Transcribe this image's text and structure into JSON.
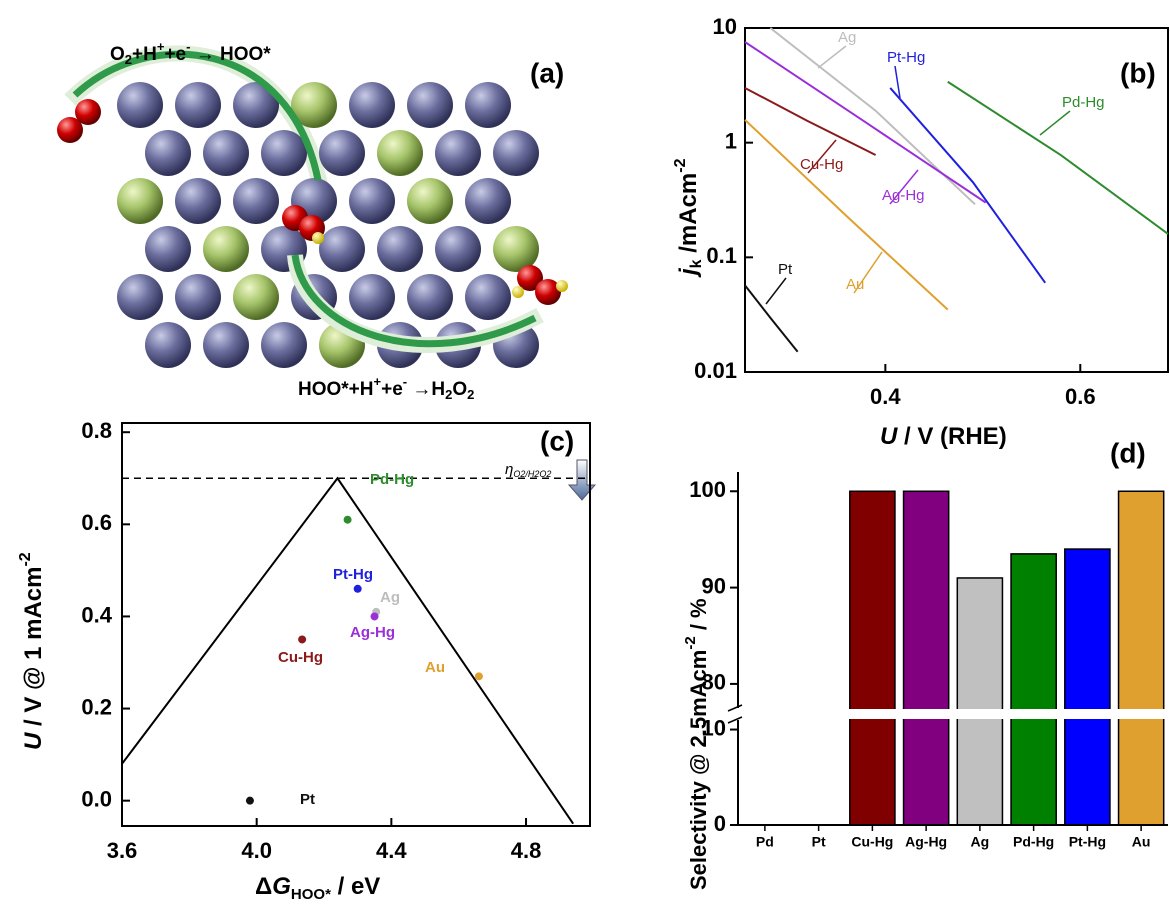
{
  "illustration": {
    "panel_label": "(a)",
    "reaction_1": [
      "O",
      "2",
      "+H",
      "+",
      "+e",
      "-",
      " → HOO*"
    ],
    "reaction_2": [
      "HOO*+H",
      "+",
      "+e",
      "-",
      " →H",
      "2",
      "O",
      "2"
    ]
  },
  "chart_data": [
    {
      "type": "line",
      "panel_label": "(b)",
      "log_y": true,
      "xlabel": [
        "U",
        " / V (RHE)"
      ],
      "ylabel": [
        "j",
        "k",
        " /mAcm",
        "-2"
      ],
      "xlim": [
        0.256,
        0.69
      ],
      "ylim": [
        0.01,
        10
      ],
      "xticks": [
        0.4,
        0.6
      ],
      "yticks": [
        0.01,
        0.1,
        1,
        10
      ],
      "series": [
        {
          "name": "Ag",
          "color": "#bdbdbd",
          "x": [
            0.282,
            0.39,
            0.492
          ],
          "values": [
            10,
            1.9,
            0.29
          ]
        },
        {
          "name": "Pt-Hg",
          "color": "#1f1fe0",
          "x": [
            0.405,
            0.49,
            0.564
          ],
          "values": [
            3.0,
            0.45,
            0.06
          ]
        },
        {
          "name": "Pd-Hg",
          "color": "#2e8b2e",
          "x": [
            0.464,
            0.58,
            0.69
          ],
          "values": [
            3.4,
            0.78,
            0.16
          ]
        },
        {
          "name": "Cu-Hg",
          "color": "#8b1a1a",
          "x": [
            0.256,
            0.32,
            0.39
          ],
          "values": [
            3.0,
            1.55,
            0.78
          ]
        },
        {
          "name": "Ag-Hg",
          "color": "#9b30d9",
          "x": [
            0.256,
            0.38,
            0.503
          ],
          "values": [
            7.55,
            1.5,
            0.3
          ]
        },
        {
          "name": "Au",
          "color": "#e0a030",
          "x": [
            0.256,
            0.36,
            0.464
          ],
          "values": [
            1.58,
            0.23,
            0.035
          ]
        },
        {
          "name": "Pt",
          "color": "#111111",
          "x": [
            0.256,
            0.283,
            0.31
          ],
          "values": [
            0.057,
            0.029,
            0.015
          ]
        }
      ]
    },
    {
      "type": "scatter",
      "panel_label": "(c)",
      "xlabel": [
        "Δ",
        "G",
        "HOO*",
        " / eV"
      ],
      "ylabel": [
        "U",
        " / V @ 1 mAcm",
        "-2"
      ],
      "annotation": [
        "η",
        "O2/H2O2"
      ],
      "xlim": [
        3.6,
        4.99
      ],
      "ylim": [
        -0.055,
        0.82
      ],
      "xticks": [
        3.6,
        {
          "value": 4.0,
          "label": "4.0"
        },
        4.4,
        4.8
      ],
      "yticks": [
        {
          "value": 0,
          "label": "0.0"
        },
        0.2,
        0.4,
        0.6,
        0.8
      ],
      "volcano": {
        "x": [
          3.6,
          4.24,
          4.94
        ],
        "values": [
          0.08,
          0.7,
          -0.05
        ]
      },
      "limit_line": 0.7,
      "series": [
        {
          "name": "Pt",
          "color": "#111111",
          "x": [
            3.98
          ],
          "values": [
            0.0
          ]
        },
        {
          "name": "Cu-Hg",
          "color": "#8b1a1a",
          "x": [
            4.135
          ],
          "values": [
            0.35
          ]
        },
        {
          "name": "Pd-Hg",
          "color": "#2e8b2e",
          "x": [
            4.27
          ],
          "values": [
            0.61
          ]
        },
        {
          "name": "Pt-Hg",
          "color": "#1f1fe0",
          "x": [
            4.3
          ],
          "values": [
            0.46
          ]
        },
        {
          "name": "Ag",
          "color": "#bdbdbd",
          "x": [
            4.355
          ],
          "values": [
            0.41
          ]
        },
        {
          "name": "Ag-Hg",
          "color": "#9b30d9",
          "x": [
            4.35
          ],
          "values": [
            0.4
          ]
        },
        {
          "name": "Au",
          "color": "#e0a030",
          "x": [
            4.66
          ],
          "values": [
            0.27
          ]
        }
      ]
    },
    {
      "type": "bar",
      "panel_label": "(d)",
      "ylabel": [
        "Selectivity @ 2.5mAcm",
        "-2",
        " / %"
      ],
      "categories": [
        "Pd",
        "Pt",
        "Cu-Hg",
        "Ag-Hg",
        "Ag",
        "Pd-Hg",
        "Pt-Hg",
        "Au"
      ],
      "values": [
        0,
        0,
        100,
        100,
        91,
        93.5,
        94,
        100
      ],
      "colors": [
        "#888888",
        "#888888",
        "#800000",
        "#800080",
        "#c0c0c0",
        "#008000",
        "#0000ff",
        "#e0a030"
      ],
      "ylim": [
        0,
        102
      ],
      "ybreak": [
        11,
        77.5
      ],
      "yticks": [
        0,
        10,
        80,
        90,
        100
      ]
    }
  ]
}
